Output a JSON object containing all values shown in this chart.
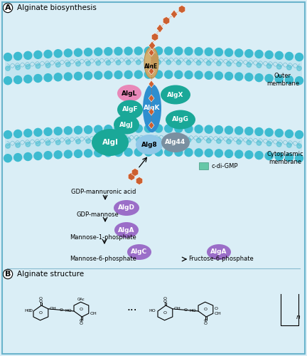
{
  "bg_color": "#daeef6",
  "border_color": "#6ab4cc",
  "title_A": "Alginate biosynthesis",
  "title_B": "Alginate structure",
  "outer_membrane_label": "Outer\nmembrane",
  "cytoplasmic_membrane_label": "Cytoplasmic\nmembrane",
  "c_di_gmp_label": "c-di-GMP",
  "gdp_mannuronic_label": "GDP-mannuronic acid",
  "gdp_mannose_label": "GDP-mannose",
  "mannose1_label": "Mannose-1-phosphate",
  "mannose6_label": "Mannose-6-phosphate",
  "fructose6_label": "Fructose-6-phosphate",
  "head_color": "#3dbbd0",
  "teal_color": "#1aa898",
  "algK_color": "#2e8ecf",
  "algX_color": "#1aa898",
  "algF_color": "#1aa898",
  "algL_color": "#e888b8",
  "algJ_color": "#1aa898",
  "algG_color": "#1aa898",
  "algI_color": "#1aa898",
  "alg8_color": "#90c8e8",
  "alg44_color": "#7a8fa0",
  "algD_color": "#9b6ec8",
  "algA_color": "#9b6ec8",
  "algC_color": "#9b6ec8",
  "algE_color": "#cca868",
  "diamond_color": "#cc6030",
  "cdigmp_color": "#66c8a8",
  "membrane_fill": "#c0e4f0",
  "membrane_tail": "#6bbdd4",
  "membrane_wave": "#5aaec8"
}
